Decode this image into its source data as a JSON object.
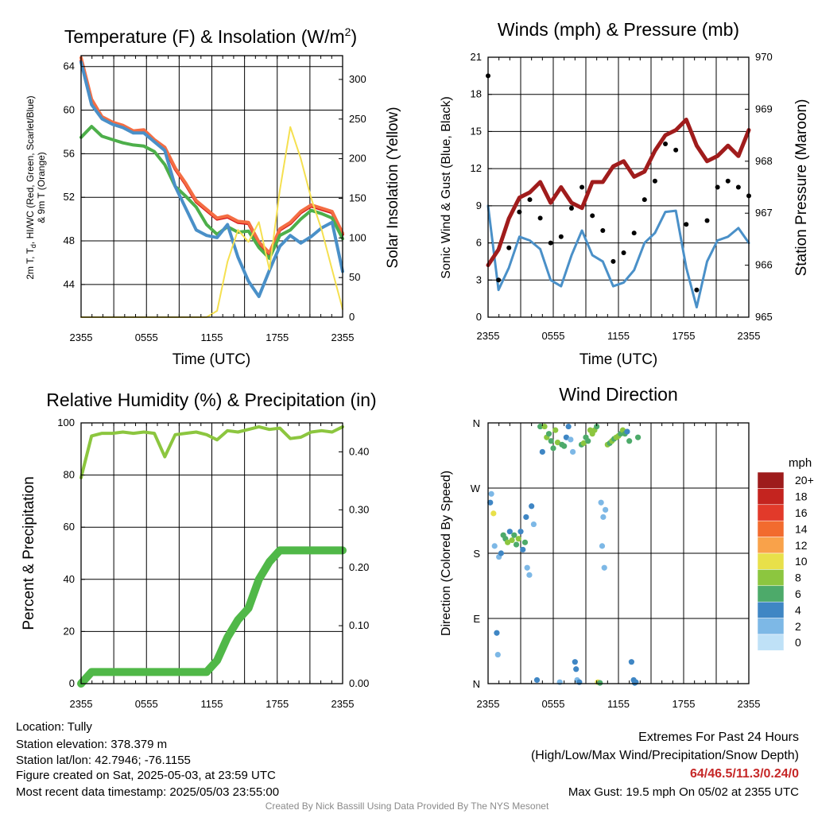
{
  "chart_data": [
    {
      "type": "line",
      "title": "Temperature (F) & Insolation (W/m",
      "title_superscript": "2",
      "title_suffix": ")",
      "ylabel_lines": [
        "2m T, T",
        "d",
        ", HI/WC (Red, Green, Scarlet/Blue)",
        "& 9m T (Orange)"
      ],
      "ylabel_line1_suffix": ", HI/WC (Red, Green, Scarlet/Blue)",
      "ylabel_line2": "& 9m T (Orange)",
      "y2label": "Solar Insolation (Yellow)",
      "xlabel": "Time (UTC)",
      "x_ticks": [
        "2355",
        "0555",
        "1155",
        "1755",
        "2355"
      ],
      "y_ticks": [
        44,
        48,
        52,
        56,
        60,
        64
      ],
      "y2_ticks": [
        0,
        50,
        100,
        150,
        200,
        250,
        300
      ],
      "ylim": [
        41,
        65
      ],
      "y2lim": [
        0,
        330
      ],
      "colors": {
        "temp": "#d7191c",
        "orange": "#f46d43",
        "dewpoint": "#4daf4a",
        "windchill": "#4a90c8",
        "solar": "#f5e050"
      },
      "series": [
        {
          "key": "temp",
          "values": [
            64.5,
            60.6,
            59.3,
            58.8,
            58.5,
            58.0,
            58.0,
            57.2,
            56.5,
            54.6,
            53.2,
            51.6,
            50.8,
            50.0,
            50.2,
            49.7,
            49.6,
            47.8,
            46.8,
            49.0,
            49.6,
            50.6,
            51.2,
            50.9,
            50.6,
            48.6
          ]
        },
        {
          "key": "orange",
          "values": [
            64.8,
            61.0,
            59.4,
            58.9,
            58.6,
            58.1,
            58.2,
            57.3,
            56.6,
            54.7,
            53.3,
            51.7,
            50.9,
            50.1,
            50.3,
            49.8,
            49.7,
            47.9,
            46.9,
            49.1,
            49.7,
            50.7,
            51.3,
            51.0,
            50.7,
            48.7
          ]
        },
        {
          "key": "dewpoint",
          "values": [
            57.5,
            58.5,
            57.6,
            57.3,
            57.0,
            56.8,
            56.7,
            56.2,
            55.0,
            53.0,
            52.1,
            51.1,
            49.5,
            48.6,
            49.3,
            48.8,
            48.9,
            47.4,
            46.4,
            48.5,
            49.0,
            50.0,
            50.8,
            50.5,
            50.1,
            48.2
          ]
        },
        {
          "key": "windchill",
          "values": [
            64.4,
            60.5,
            59.2,
            58.7,
            58.4,
            57.9,
            57.9,
            57.1,
            56.3,
            53.0,
            51.0,
            49.0,
            48.5,
            48.3,
            49.5,
            46.5,
            44.3,
            42.9,
            45.3,
            47.5,
            48.5,
            47.8,
            48.4,
            49.2,
            49.7,
            45.2
          ]
        },
        {
          "key": "solar",
          "axis": "y2",
          "values": [
            0,
            0,
            0,
            0,
            0,
            0,
            0,
            0,
            0,
            0,
            0,
            0,
            0,
            8,
            70,
            110,
            95,
            120,
            60,
            160,
            240,
            200,
            150,
            110,
            60,
            10
          ]
        }
      ]
    },
    {
      "type": "line",
      "title": "Winds (mph) & Pressure (mb)",
      "ylabel": "Sonic Wind & Gust (Blue, Black)",
      "y2label": "Station Pressure (Maroon)",
      "xlabel": "Time (UTC)",
      "x_ticks": [
        "2355",
        "0555",
        "1155",
        "1755",
        "2355"
      ],
      "y_ticks": [
        0,
        3,
        6,
        9,
        12,
        15,
        18,
        21
      ],
      "y2_ticks": [
        965,
        966,
        967,
        968,
        969,
        970
      ],
      "ylim": [
        0,
        21
      ],
      "y2lim": [
        965,
        970
      ],
      "colors": {
        "wind": "#4a90c8",
        "gust": "#000000",
        "pressure": "#a01c1c"
      },
      "series": [
        {
          "key": "wind",
          "values": [
            9.0,
            2.2,
            4.0,
            6.5,
            6.2,
            5.5,
            3.0,
            2.5,
            5.0,
            7.0,
            5.0,
            4.5,
            2.5,
            2.8,
            3.8,
            6.0,
            6.8,
            8.5,
            8.6,
            4.0,
            0.8,
            4.5,
            6.2,
            6.5,
            7.2,
            6.0
          ]
        },
        {
          "key": "gust",
          "values": [
            19.5,
            3.0,
            5.6,
            8.5,
            9.5,
            8.0,
            6.0,
            6.5,
            8.8,
            10.5,
            8.2,
            7.0,
            4.5,
            5.2,
            6.8,
            9.5,
            11.0,
            14.0,
            13.5,
            7.5,
            2.2,
            7.8,
            10.5,
            11.0,
            10.5,
            9.8
          ]
        },
        {
          "key": "pressure",
          "axis": "y2",
          "values": [
            966.0,
            966.3,
            966.9,
            967.3,
            967.4,
            967.6,
            967.2,
            967.5,
            967.2,
            967.1,
            967.6,
            967.6,
            967.9,
            968.0,
            967.7,
            967.8,
            968.2,
            968.5,
            968.6,
            968.8,
            968.3,
            968.0,
            968.1,
            968.3,
            968.1,
            968.6
          ]
        }
      ]
    },
    {
      "type": "line",
      "title": "Relative Humidity (%) & Precipitation (in)",
      "ylabel": "Percent & Precipitation",
      "x_ticks": [
        "2355",
        "0555",
        "1155",
        "1755",
        "2355"
      ],
      "y_ticks": [
        0,
        20,
        40,
        60,
        80,
        100
      ],
      "y2_ticks": [
        "0.00",
        "0.10",
        "0.20",
        "0.30",
        "0.40"
      ],
      "ylim": [
        0,
        100
      ],
      "y2lim": [
        0,
        0.45
      ],
      "colors": {
        "rh": "#8cc63f",
        "precip": "#50b848"
      },
      "series": [
        {
          "key": "rh",
          "values": [
            79,
            95,
            96,
            96,
            96.5,
            96,
            96.5,
            96,
            87,
            95.5,
            96,
            96.5,
            95.5,
            93.5,
            97,
            96.5,
            97.5,
            98.5,
            97.5,
            98,
            94,
            94.5,
            96.5,
            97,
            96.5,
            98.5
          ]
        },
        {
          "key": "precip",
          "axis": "y2",
          "values": [
            0.0,
            0.02,
            0.02,
            0.02,
            0.02,
            0.02,
            0.02,
            0.02,
            0.02,
            0.02,
            0.02,
            0.02,
            0.02,
            0.04,
            0.08,
            0.11,
            0.13,
            0.18,
            0.21,
            0.23,
            0.23,
            0.23,
            0.23,
            0.23,
            0.23,
            0.23
          ]
        }
      ]
    },
    {
      "type": "scatter",
      "title": "Wind Direction",
      "ylabel": "Direction (Colored By Speed)",
      "x_ticks": [
        "2355",
        "0555",
        "1155",
        "1755",
        "2355"
      ],
      "y_ticks": [
        "N",
        "E",
        "S",
        "W",
        "N"
      ],
      "legend_title": "mph",
      "legend_labels": [
        "20+",
        "18",
        "16",
        "14",
        "12",
        "10",
        "8",
        "6",
        "4",
        "2",
        "0"
      ],
      "legend_colors": [
        "#9e1c1c",
        "#c4241f",
        "#e23a2a",
        "#f26b2e",
        "#f9a24a",
        "#e8e04a",
        "#8cc63f",
        "#4daa6a",
        "#3f86c4",
        "#7db8e6",
        "#bfe1f7"
      ],
      "points": [
        {
          "t": 0.2,
          "dir": 250,
          "speed": 3
        },
        {
          "t": 0.3,
          "dir": 262,
          "speed": 1
        },
        {
          "t": 0.5,
          "dir": 235,
          "speed": 9
        },
        {
          "t": 0.6,
          "dir": 190,
          "speed": 2
        },
        {
          "t": 0.8,
          "dir": 70,
          "speed": 3
        },
        {
          "t": 0.9,
          "dir": 40,
          "speed": 1
        },
        {
          "t": 1.0,
          "dir": 175,
          "speed": 2
        },
        {
          "t": 1.2,
          "dir": 180,
          "speed": 3
        },
        {
          "t": 1.4,
          "dir": 205,
          "speed": 5
        },
        {
          "t": 1.6,
          "dir": 200,
          "speed": 6
        },
        {
          "t": 1.8,
          "dir": 195,
          "speed": 7
        },
        {
          "t": 2.0,
          "dir": 210,
          "speed": 4
        },
        {
          "t": 2.2,
          "dir": 198,
          "speed": 8
        },
        {
          "t": 2.4,
          "dir": 205,
          "speed": 6
        },
        {
          "t": 2.6,
          "dir": 192,
          "speed": 5
        },
        {
          "t": 2.8,
          "dir": 200,
          "speed": 8
        },
        {
          "t": 3.0,
          "dir": 210,
          "speed": 4
        },
        {
          "t": 3.2,
          "dir": 185,
          "speed": 3
        },
        {
          "t": 3.4,
          "dir": 195,
          "speed": 5
        },
        {
          "t": 3.5,
          "dir": 230,
          "speed": 4
        },
        {
          "t": 3.6,
          "dir": 160,
          "speed": 2
        },
        {
          "t": 3.8,
          "dir": 150,
          "speed": 2
        },
        {
          "t": 4.0,
          "dir": 245,
          "speed": 3
        },
        {
          "t": 4.2,
          "dir": 220,
          "speed": 2
        },
        {
          "t": 4.5,
          "dir": 5,
          "speed": 4
        },
        {
          "t": 4.8,
          "dir": 355,
          "speed": 6
        },
        {
          "t": 5.0,
          "dir": 320,
          "speed": 3
        },
        {
          "t": 5.2,
          "dir": 355,
          "speed": 7
        },
        {
          "t": 5.4,
          "dir": 340,
          "speed": 8
        },
        {
          "t": 5.6,
          "dir": 345,
          "speed": 6
        },
        {
          "t": 5.8,
          "dir": 335,
          "speed": 5
        },
        {
          "t": 6.0,
          "dir": 325,
          "speed": 6
        },
        {
          "t": 6.2,
          "dir": 350,
          "speed": 8
        },
        {
          "t": 6.4,
          "dir": 333,
          "speed": 7
        },
        {
          "t": 6.6,
          "dir": 2,
          "speed": 2
        },
        {
          "t": 6.8,
          "dir": 330,
          "speed": 5
        },
        {
          "t": 7.0,
          "dir": 328,
          "speed": 6
        },
        {
          "t": 7.2,
          "dir": 340,
          "speed": 3
        },
        {
          "t": 7.4,
          "dir": 355,
          "speed": 3
        },
        {
          "t": 7.6,
          "dir": 337,
          "speed": 2
        },
        {
          "t": 7.8,
          "dir": 320,
          "speed": 1
        },
        {
          "t": 8.0,
          "dir": 30,
          "speed": 4
        },
        {
          "t": 8.1,
          "dir": 20,
          "speed": 4
        },
        {
          "t": 8.2,
          "dir": 5,
          "speed": 2
        },
        {
          "t": 8.4,
          "dir": 2,
          "speed": 4
        },
        {
          "t": 8.6,
          "dir": 330,
          "speed": 6
        },
        {
          "t": 8.8,
          "dir": 332,
          "speed": 7
        },
        {
          "t": 9.0,
          "dir": 340,
          "speed": 5
        },
        {
          "t": 9.2,
          "dir": 335,
          "speed": 6
        },
        {
          "t": 9.4,
          "dir": 350,
          "speed": 8
        },
        {
          "t": 9.6,
          "dir": 345,
          "speed": 8
        },
        {
          "t": 9.8,
          "dir": 350,
          "speed": 7
        },
        {
          "t": 10.0,
          "dir": 355,
          "speed": 5
        },
        {
          "t": 10.1,
          "dir": 2,
          "speed": 10
        },
        {
          "t": 10.3,
          "dir": 1,
          "speed": 6
        },
        {
          "t": 10.4,
          "dir": 250,
          "speed": 1
        },
        {
          "t": 10.5,
          "dir": 190,
          "speed": 1
        },
        {
          "t": 10.6,
          "dir": 230,
          "speed": 1
        },
        {
          "t": 10.7,
          "dir": 160,
          "speed": 1
        },
        {
          "t": 10.8,
          "dir": 240,
          "speed": 2
        },
        {
          "t": 11.0,
          "dir": 330,
          "speed": 7
        },
        {
          "t": 11.2,
          "dir": 332,
          "speed": 6
        },
        {
          "t": 11.4,
          "dir": 335,
          "speed": 7
        },
        {
          "t": 11.6,
          "dir": 338,
          "speed": 6
        },
        {
          "t": 11.8,
          "dir": 340,
          "speed": 8
        },
        {
          "t": 12.0,
          "dir": 342,
          "speed": 7
        },
        {
          "t": 12.2,
          "dir": 345,
          "speed": 6
        },
        {
          "t": 12.4,
          "dir": 350,
          "speed": 8
        },
        {
          "t": 12.6,
          "dir": 345,
          "speed": 5
        },
        {
          "t": 12.8,
          "dir": 348,
          "speed": 4
        },
        {
          "t": 13.0,
          "dir": 335,
          "speed": 6
        },
        {
          "t": 13.2,
          "dir": 30,
          "speed": 4
        },
        {
          "t": 13.4,
          "dir": 5,
          "speed": 4
        },
        {
          "t": 13.5,
          "dir": 1,
          "speed": 3
        },
        {
          "t": 13.6,
          "dir": 2,
          "speed": 4
        },
        {
          "t": 13.8,
          "dir": 340,
          "speed": 5
        }
      ]
    }
  ],
  "footer": {
    "location": "Location: Tully",
    "elevation": "Station elevation: 378.379 m",
    "latlon": "Station lat/lon: 42.7946; -76.1155",
    "created": "Figure created on Sat, 2025-05-03, at 23:59 UTC",
    "recent": "Most recent data timestamp: 2025/05/03 23:55:00",
    "extremes_title": "Extremes For Past 24 Hours",
    "extremes_sub": "(High/Low/Max Wind/Precipitation/Snow Depth)",
    "extremes_values": "64/46.5/11.3/0.24/0",
    "max_gust": "Max Gust: 19.5 mph On 05/02 at 2355 UTC",
    "credit": "Created By Nick Bassill Using Data Provided By The NYS Mesonet",
    "extremes_color": "#c62828"
  }
}
